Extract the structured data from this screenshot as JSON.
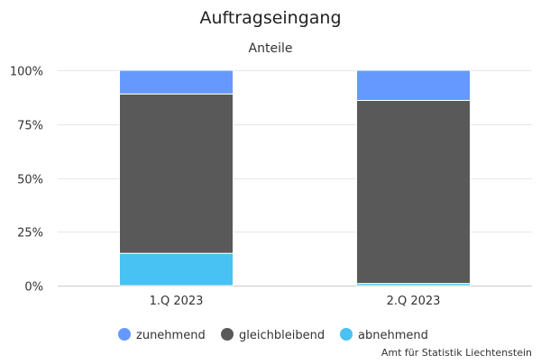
{
  "chart_data": {
    "type": "bar",
    "stacked": true,
    "normalized": true,
    "title": "Auftragseingang",
    "subtitle": "Anteile",
    "categories": [
      "1.Q 2023",
      "2.Q 2023"
    ],
    "series": [
      {
        "name": "zunehmend",
        "color": "#6699ff",
        "values": [
          11,
          14
        ]
      },
      {
        "name": "gleichbleibend",
        "color": "#595959",
        "values": [
          74,
          85
        ]
      },
      {
        "name": "abnehmend",
        "color": "#47c2f2",
        "values": [
          15,
          1
        ]
      }
    ],
    "y_ticks": [
      "0%",
      "25%",
      "50%",
      "75%",
      "100%"
    ],
    "ylim": [
      0,
      100
    ],
    "grid": true,
    "legend_position": "bottom",
    "credits": "Amt für Statistik Liechtenstein"
  }
}
